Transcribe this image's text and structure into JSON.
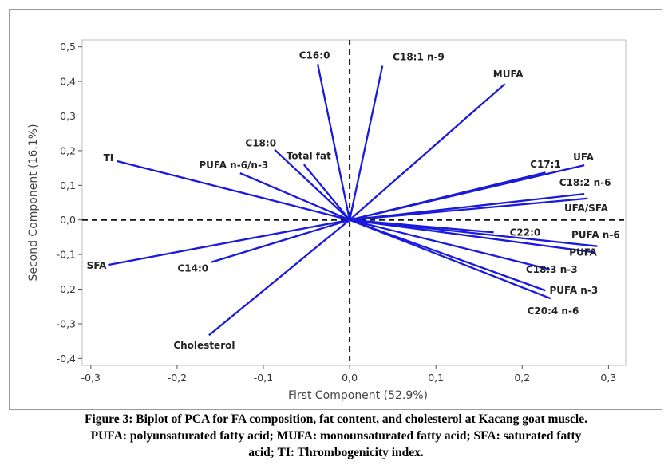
{
  "chart_data": {
    "type": "biplot",
    "xlabel": "First Component (52.9%)",
    "ylabel": "Second Component (16.1%)",
    "xlim": [
      -0.31,
      0.32
    ],
    "ylim": [
      -0.42,
      0.52
    ],
    "xticks": [
      -0.3,
      -0.2,
      -0.1,
      0.0,
      0.1,
      0.2,
      0.3
    ],
    "yticks": [
      -0.4,
      -0.3,
      -0.2,
      -0.1,
      0.0,
      0.1,
      0.2,
      0.3,
      0.4,
      0.5
    ],
    "xtick_labels": [
      "-0,3",
      "-0,2",
      "-0,1",
      "0,0",
      "0,1",
      "0,2",
      "0,3"
    ],
    "ytick_labels": [
      "-0,4",
      "-0,3",
      "-0,2",
      "-0,1",
      "0,0",
      "0,1",
      "0,2",
      "0,3",
      "0,4",
      "0,5"
    ],
    "reference_lines": "dashed lines at x=0 and y=0",
    "vector_color": "#1a1adc",
    "vectors": [
      {
        "name": "C16:0",
        "x": -0.037,
        "y": 0.45,
        "label_anchor": "middle"
      },
      {
        "name": "C18:1 n-9",
        "x": 0.038,
        "y": 0.445,
        "label_anchor": "start"
      },
      {
        "name": "MUFA",
        "x": 0.18,
        "y": 0.393,
        "label_anchor": "middle"
      },
      {
        "name": "C18:0",
        "x": -0.087,
        "y": 0.203,
        "label_anchor": "end"
      },
      {
        "name": "Total fat",
        "x": -0.053,
        "y": 0.16,
        "label_anchor": "start"
      },
      {
        "name": "TI",
        "x": -0.27,
        "y": 0.17,
        "label_anchor": "end"
      },
      {
        "name": "PUFA n-6/n-3",
        "x": -0.127,
        "y": 0.135,
        "label_anchor": "middle"
      },
      {
        "name": "C17:1",
        "x": 0.227,
        "y": 0.137,
        "label_anchor": "middle"
      },
      {
        "name": "UFA",
        "x": 0.272,
        "y": 0.158,
        "label_anchor": "start"
      },
      {
        "name": "C18:2 n-6",
        "x": 0.272,
        "y": 0.075,
        "label_anchor": "middle"
      },
      {
        "name": "UFA/SFA",
        "x": 0.276,
        "y": 0.062,
        "label_anchor": "middle"
      },
      {
        "name": "C22:0",
        "x": 0.167,
        "y": -0.036,
        "label_anchor": "start"
      },
      {
        "name": "PUFA n-6",
        "x": 0.287,
        "y": -0.076,
        "label_anchor": "middle"
      },
      {
        "name": "PUFA",
        "x": 0.285,
        "y": -0.094,
        "label_anchor": "start"
      },
      {
        "name": "C18:3 n-3",
        "x": 0.232,
        "y": -0.143,
        "label_anchor": "start"
      },
      {
        "name": "PUFA n-3",
        "x": 0.227,
        "y": -0.204,
        "label_anchor": "start"
      },
      {
        "name": "C20:4 n-6",
        "x": 0.233,
        "y": -0.227,
        "label_anchor": "middle"
      },
      {
        "name": "SFA",
        "x": -0.28,
        "y": -0.13,
        "label_anchor": "end"
      },
      {
        "name": "C14:0",
        "x": -0.16,
        "y": -0.122,
        "label_anchor": "end"
      },
      {
        "name": "Cholesterol",
        "x": -0.163,
        "y": -0.333,
        "label_anchor": "middle"
      }
    ]
  },
  "caption": {
    "line1": "Figure 3: Biplot of PCA for FA composition, fat content, and cholesterol at Kacang goat muscle.",
    "line2": "PUFA: polyunsaturated fatty acid; MUFA: monounsaturated fatty acid; SFA: saturated fatty",
    "line3": "acid; TI: Thrombogenicity index."
  }
}
